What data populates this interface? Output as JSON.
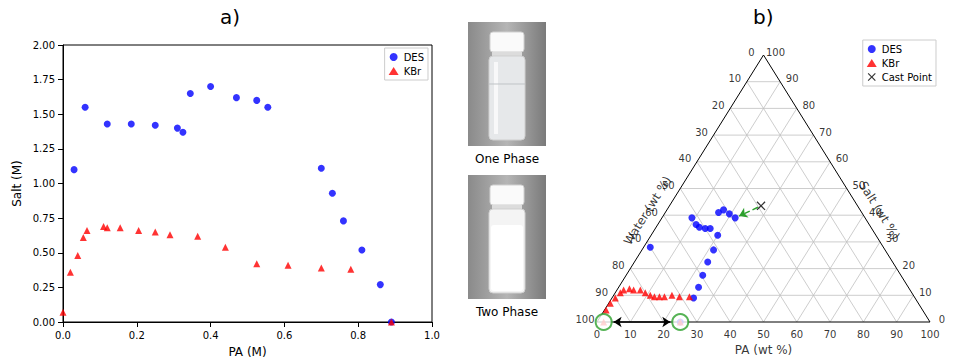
{
  "chart_data": [
    {
      "type": "scatter",
      "title": "a)",
      "xlabel": "PA (M)",
      "ylabel": "Salt (M)",
      "xlim": [
        0,
        1
      ],
      "ylim": [
        0,
        2
      ],
      "xticks": [
        {
          "value": 0,
          "label": "0.0"
        },
        0.2,
        0.4,
        0.6,
        0.8,
        {
          "value": 1,
          "label": "1.0"
        }
      ],
      "yticks": [
        {
          "value": 0,
          "label": "0.00"
        },
        0.25,
        {
          "value": 0.5,
          "label": "0.50"
        },
        0.75,
        {
          "value": 1,
          "label": "1.00"
        },
        1.25,
        {
          "value": 1.5,
          "label": "1.50"
        },
        1.75,
        {
          "value": 2,
          "label": "2.00"
        }
      ],
      "grid": false,
      "legend": "upper right",
      "series": [
        {
          "name": "DES",
          "color": "#0000ff",
          "marker": "circle",
          "x": [
            0.03,
            0.06,
            0.12,
            0.185,
            0.25,
            0.31,
            0.325,
            0.345,
            0.4,
            0.47,
            0.525,
            0.555,
            0.7,
            0.73,
            0.76,
            0.81,
            0.86,
            0.89
          ],
          "values": [
            1.1,
            1.55,
            1.43,
            1.43,
            1.42,
            1.4,
            1.37,
            1.65,
            1.7,
            1.62,
            1.6,
            1.55,
            1.11,
            0.93,
            0.73,
            0.52,
            0.27,
            0.0
          ]
        },
        {
          "name": "KBr",
          "color": "#ff0000",
          "marker": "triangle",
          "x": [
            0.0,
            0.02,
            0.04,
            0.055,
            0.065,
            0.11,
            0.12,
            0.155,
            0.205,
            0.25,
            0.29,
            0.365,
            0.44,
            0.525,
            0.61,
            0.7,
            0.78,
            0.89
          ],
          "values": [
            0.07,
            0.36,
            0.48,
            0.61,
            0.66,
            0.69,
            0.68,
            0.68,
            0.66,
            0.65,
            0.63,
            0.62,
            0.54,
            0.42,
            0.41,
            0.39,
            0.38,
            0.0
          ]
        }
      ]
    },
    {
      "type": "ternary",
      "title": "b)",
      "axis_labels": {
        "pa": "PA (wt %)",
        "water": "Water (wt %)",
        "salt": "Salt (wt %)"
      },
      "lim": [
        0,
        100
      ],
      "ticks": [
        0,
        10,
        20,
        30,
        40,
        50,
        60,
        70,
        80,
        90,
        100
      ],
      "grid": true,
      "legend": "upper right",
      "series": [
        {
          "name": "DES",
          "color": "#0000ff",
          "marker": "circle",
          "pa": [
            2,
            9,
            11.5,
            13,
            15,
            16.5,
            16,
            17,
            19.5,
            22,
            20,
            21.5,
            22,
            23,
            24,
            24.5,
            25
          ],
          "water": [
            70,
            52,
            52,
            51.5,
            50,
            48.5,
            43,
            41,
            40,
            39,
            47.5,
            51.5,
            55.5,
            59.5,
            63,
            66.5,
            75
          ],
          "salt": [
            28,
            39,
            36.5,
            35.5,
            35,
            35,
            41,
            42,
            40.5,
            39,
            32.5,
            27,
            22.5,
            17.5,
            13,
            9,
            0
          ]
        },
        {
          "name": "KBr",
          "color": "#ff0000",
          "marker": "triangle",
          "pa": [
            2,
            0.5,
            0.5,
            1,
            1.5,
            2,
            3.5,
            5,
            7,
            9,
            11,
            12.5,
            14,
            15.5,
            17.5,
            20,
            23,
            25
          ],
          "water": [
            98,
            95,
            92.5,
            90,
            87.5,
            86,
            84,
            83,
            81,
            80,
            79,
            78,
            76.5,
            75,
            72.5,
            70.5,
            67.5,
            75
          ],
          "salt": [
            0,
            4.5,
            7,
            9,
            11,
            12,
            12.5,
            12,
            12,
            11,
            10,
            9.5,
            9.5,
            9.5,
            10,
            9.5,
            9.5,
            0
          ]
        },
        {
          "name": "Cast Point",
          "color": "#000000",
          "marker": "x",
          "pa": [
            27.5
          ],
          "water": [
            29
          ],
          "salt": [
            43.5
          ]
        }
      ]
    }
  ],
  "photos": [
    {
      "caption": "One Phase"
    },
    {
      "caption": "Two Phase"
    }
  ]
}
